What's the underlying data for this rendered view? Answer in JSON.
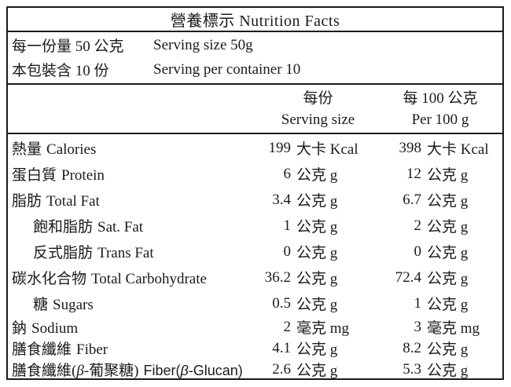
{
  "title": "營養標示 Nutrition Facts",
  "serving_info": [
    {
      "zh": "每一份量 50 公克",
      "en": "Serving size 50g"
    },
    {
      "zh": "本包裝含 10 份",
      "en": "Serving per container 10"
    }
  ],
  "columns": [
    {
      "zh": "每份",
      "en": "Serving size"
    },
    {
      "zh": "每 100 公克",
      "en": "Per 100 g"
    }
  ],
  "rows": [
    {
      "label_zh": "熱量",
      "label_en": "Calories",
      "indent": false,
      "serving": {
        "value": "199",
        "unit": "大卡 Kcal"
      },
      "per100g": {
        "value": "398",
        "unit": "大卡 Kcal"
      }
    },
    {
      "label_zh": "蛋白質",
      "label_en": "Protein",
      "indent": false,
      "serving": {
        "value": "6",
        "unit": "公克 g"
      },
      "per100g": {
        "value": "12",
        "unit": "公克 g"
      }
    },
    {
      "label_zh": "脂肪",
      "label_en": "Total Fat",
      "indent": false,
      "serving": {
        "value": "3.4",
        "unit": "公克 g"
      },
      "per100g": {
        "value": "6.7",
        "unit": "公克 g"
      }
    },
    {
      "label_zh": "飽和脂肪",
      "label_en": "Sat. Fat",
      "indent": true,
      "serving": {
        "value": "1",
        "unit": "公克 g"
      },
      "per100g": {
        "value": "2",
        "unit": "公克 g"
      }
    },
    {
      "label_zh": "反式脂肪",
      "label_en": "Trans Fat",
      "indent": true,
      "serving": {
        "value": "0",
        "unit": "公克 g"
      },
      "per100g": {
        "value": "0",
        "unit": "公克 g"
      }
    },
    {
      "label_zh": "碳水化合物",
      "label_en": "Total Carbohydrate",
      "indent": false,
      "serving": {
        "value": "36.2",
        "unit": "公克 g"
      },
      "per100g": {
        "value": "72.4",
        "unit": "公克 g"
      }
    },
    {
      "label_zh": "糖",
      "label_en": "Sugars",
      "indent": true,
      "serving": {
        "value": "0.5",
        "unit": "公克 g"
      },
      "per100g": {
        "value": "1",
        "unit": "公克 g"
      }
    },
    {
      "label_zh": "鈉",
      "label_en": "Sodium",
      "indent": false,
      "serving": {
        "value": "2",
        "unit": "毫克 mg"
      },
      "per100g": {
        "value": "3",
        "unit": "毫克 mg"
      }
    },
    {
      "label_zh": "膳食纖維",
      "label_en": "Fiber",
      "indent": false,
      "serving": {
        "value": "4.1",
        "unit": "公克 g"
      },
      "per100g": {
        "value": "8.2",
        "unit": "公克 g"
      }
    },
    {
      "label_zh": "膳食纖維(β-葡聚糖)",
      "label_en": "Fiber(β-Glucan)",
      "indent": false,
      "serving": {
        "value": "2.6",
        "unit": "公克 g"
      },
      "per100g": {
        "value": "5.3",
        "unit": "公克 g"
      }
    }
  ],
  "colors": {
    "text": "#1b1b1b",
    "border": "#1b1b1b",
    "background": "#ffffff"
  }
}
